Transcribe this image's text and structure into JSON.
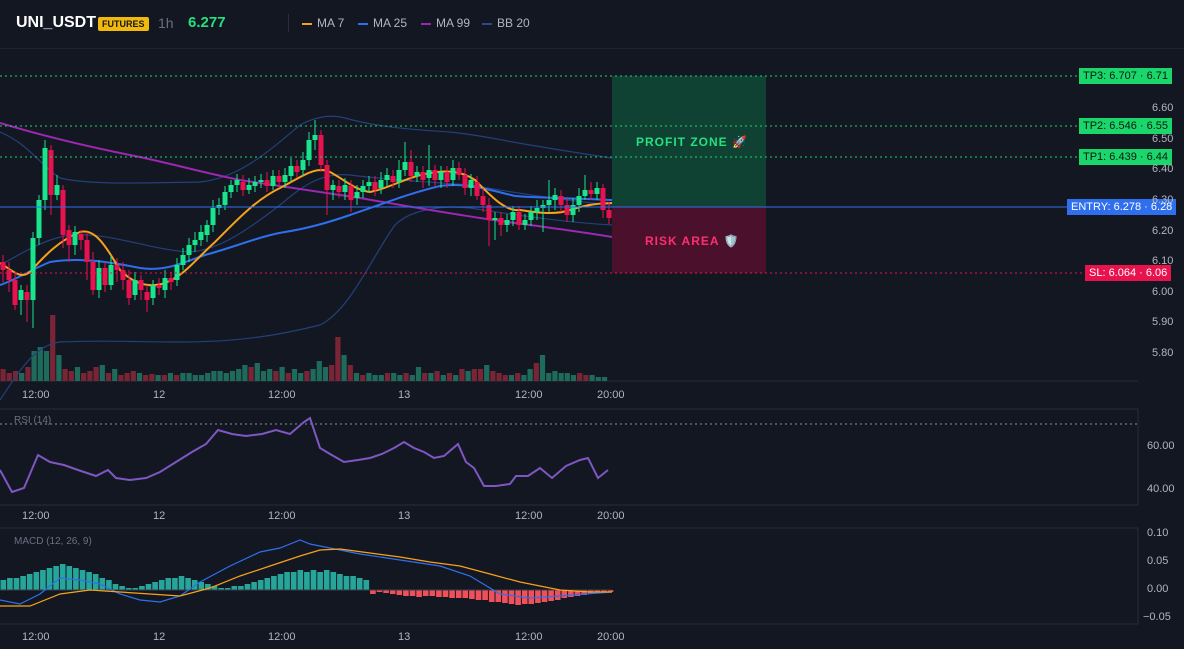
{
  "header": {
    "symbol": "UNI_USDT",
    "badge": "FUTURES",
    "timeframe": "1h",
    "price": "6.277",
    "legend": [
      {
        "label": "MA 7",
        "color": "#f7a21b"
      },
      {
        "label": "MA 25",
        "color": "#2f6fee"
      },
      {
        "label": "MA 99",
        "color": "#9c27b0"
      },
      {
        "label": "BB 20",
        "color": "#2c4a8a"
      }
    ]
  },
  "price_axis": [
    "6.60",
    "6.50",
    "6.40",
    "6.30",
    "6.20",
    "6.10",
    "6.00",
    "5.90",
    "5.80"
  ],
  "levels": {
    "tp3": "TP3: 6.707 · 6.71",
    "tp2": "TP2: 6.546 · 6.55",
    "tp1": "TP1: 6.439 · 6.44",
    "entry": "ENTRY: 6.278 · 6.28",
    "sl": "SL: 6.064 · 6.06"
  },
  "zones": {
    "profit": "PROFIT ZONE 🚀",
    "risk": "RISK AREA 🛡️"
  },
  "time_axis": [
    "12:00",
    "12",
    "12:00",
    "13",
    "12:00",
    "20:00"
  ],
  "rsi": {
    "title": "RSI (14)",
    "axis": [
      "60.00",
      "40.00"
    ]
  },
  "macd": {
    "title": "MACD (12, 26, 9)",
    "axis": [
      "0.10",
      "0.05",
      "0.00",
      "−0.05"
    ]
  },
  "colors": {
    "up": "#26a69a",
    "up_bright": "#19e68c",
    "down": "#e8124f",
    "background": "#131722"
  }
}
